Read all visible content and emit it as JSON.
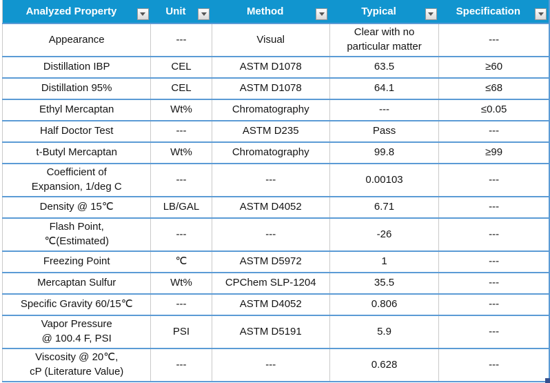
{
  "table": {
    "columns": [
      {
        "label": "Analyzed Property"
      },
      {
        "label": "Unit"
      },
      {
        "label": "Method"
      },
      {
        "label": "Typical"
      },
      {
        "label": "Specification"
      }
    ],
    "rows": [
      [
        "Appearance",
        "---",
        "Visual",
        "Clear with no\nparticular matter",
        "---"
      ],
      [
        "Distillation IBP",
        "CEL",
        "ASTM D1078",
        "63.5",
        "≥60"
      ],
      [
        "Distillation 95%",
        "CEL",
        "ASTM D1078",
        "64.1",
        "≤68"
      ],
      [
        "Ethyl Mercaptan",
        "Wt%",
        "Chromatography",
        "---",
        "≤0.05"
      ],
      [
        "Half Doctor Test",
        "---",
        "ASTM D235",
        "Pass",
        "---"
      ],
      [
        "t-Butyl Mercaptan",
        "Wt%",
        "Chromatography",
        "99.8",
        "≥99"
      ],
      [
        "Coefficient of\nExpansion, 1/deg C",
        "---",
        "---",
        "0.00103",
        "---"
      ],
      [
        "Density @ 15℃",
        "LB/GAL",
        "ASTM D4052",
        "6.71",
        "---"
      ],
      [
        "Flash Point,\n℃(Estimated)",
        "---",
        "---",
        "-26",
        "---"
      ],
      [
        "Freezing Point",
        "℃",
        "ASTM D5972",
        "1",
        "---"
      ],
      [
        "Mercaptan Sulfur",
        "Wt%",
        "CPChem SLP-1204",
        "35.5",
        "---"
      ],
      [
        "Specific Gravity 60/15℃",
        "---",
        "ASTM D4052",
        "0.806",
        "---"
      ],
      [
        "Vapor Pressure\n@ 100.4 F, PSI",
        "PSI",
        "ASTM D5191",
        "5.9",
        "---"
      ],
      [
        "Viscosity @ 20℃,\ncP (Literature Value)",
        "---",
        "---",
        "0.628",
        "---"
      ]
    ]
  },
  "icons": {
    "header_filter": "chevron-down-icon"
  },
  "colors": {
    "header_bg": "#1195CF",
    "grid_blue": "#5B9BD5",
    "grid_gray": "#C9C9C9",
    "handle": "#35508F"
  }
}
